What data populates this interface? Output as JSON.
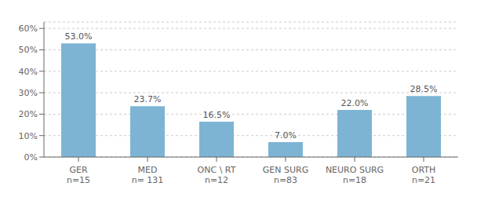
{
  "chart_data": {
    "type": "bar",
    "categories": [
      "GER\nn=15",
      "MED\nn= 131",
      "ONC \\ RT\nn=12",
      "GEN SURG\nn=83",
      "NEURO SURG\nn=18",
      "ORTH\nn=21"
    ],
    "values": [
      53.0,
      23.7,
      16.5,
      7.0,
      22.0,
      28.5
    ],
    "value_labels": [
      "53.0%",
      "23.7%",
      "16.5%",
      "7.0%",
      "22.0%",
      "28.5%"
    ],
    "data_labels": true,
    "color": "#7db4d4",
    "ylim": [
      0,
      63
    ],
    "yticks": [
      {
        "value": 0,
        "label": "0%"
      },
      {
        "value": 10,
        "label": "10%"
      },
      {
        "value": 20,
        "label": "20%"
      },
      {
        "value": 30,
        "label": "30%"
      },
      {
        "value": 40,
        "label": "40%"
      },
      {
        "value": 50,
        "label": "50%"
      },
      {
        "value": 60,
        "label": "60%"
      }
    ],
    "grid": true
  }
}
